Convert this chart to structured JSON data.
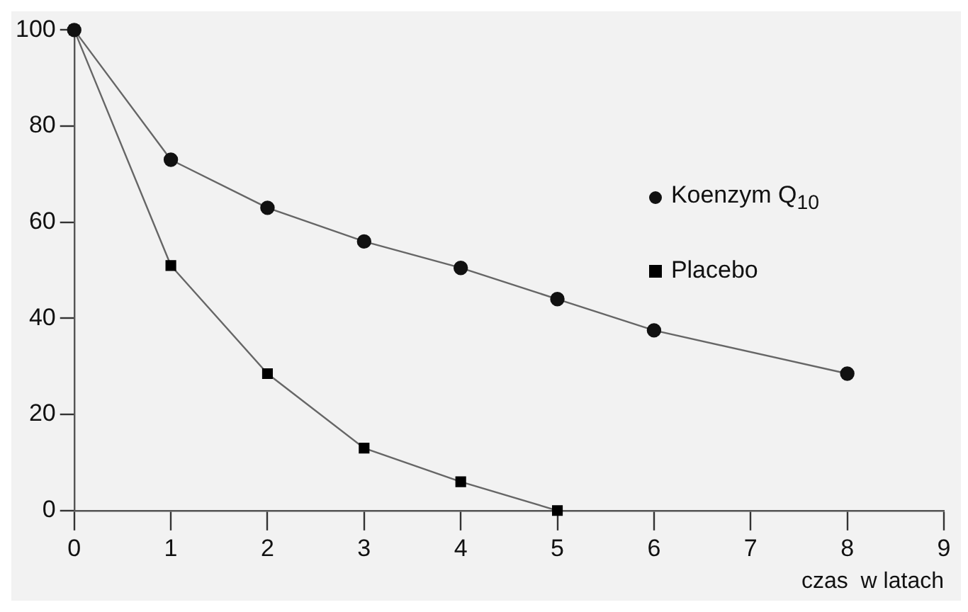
{
  "chart_data": {
    "type": "line",
    "xlabel": "czas  w latach",
    "x": [
      0,
      1,
      2,
      3,
      4,
      5,
      6,
      8
    ],
    "xlim": [
      0,
      9
    ],
    "xticks": [
      0,
      1,
      2,
      3,
      4,
      5,
      6,
      7,
      8,
      9
    ],
    "ylim": [
      0,
      100
    ],
    "yticks": [
      0,
      20,
      40,
      60,
      80,
      100
    ],
    "grid": false,
    "legend": "top right",
    "line_style": "solid",
    "series": [
      {
        "name": "Koenzym Q$_{10}$",
        "color": "#111111",
        "marker": "circle",
        "values": [
          100,
          73,
          63,
          56,
          50.5,
          44,
          37.5,
          28.5
        ]
      },
      {
        "name": "Placebo",
        "color": "#000000",
        "marker": "square",
        "x": [
          0,
          1,
          2,
          3,
          4,
          5
        ],
        "values": [
          100,
          51,
          28.5,
          13,
          6,
          0
        ]
      }
    ]
  }
}
